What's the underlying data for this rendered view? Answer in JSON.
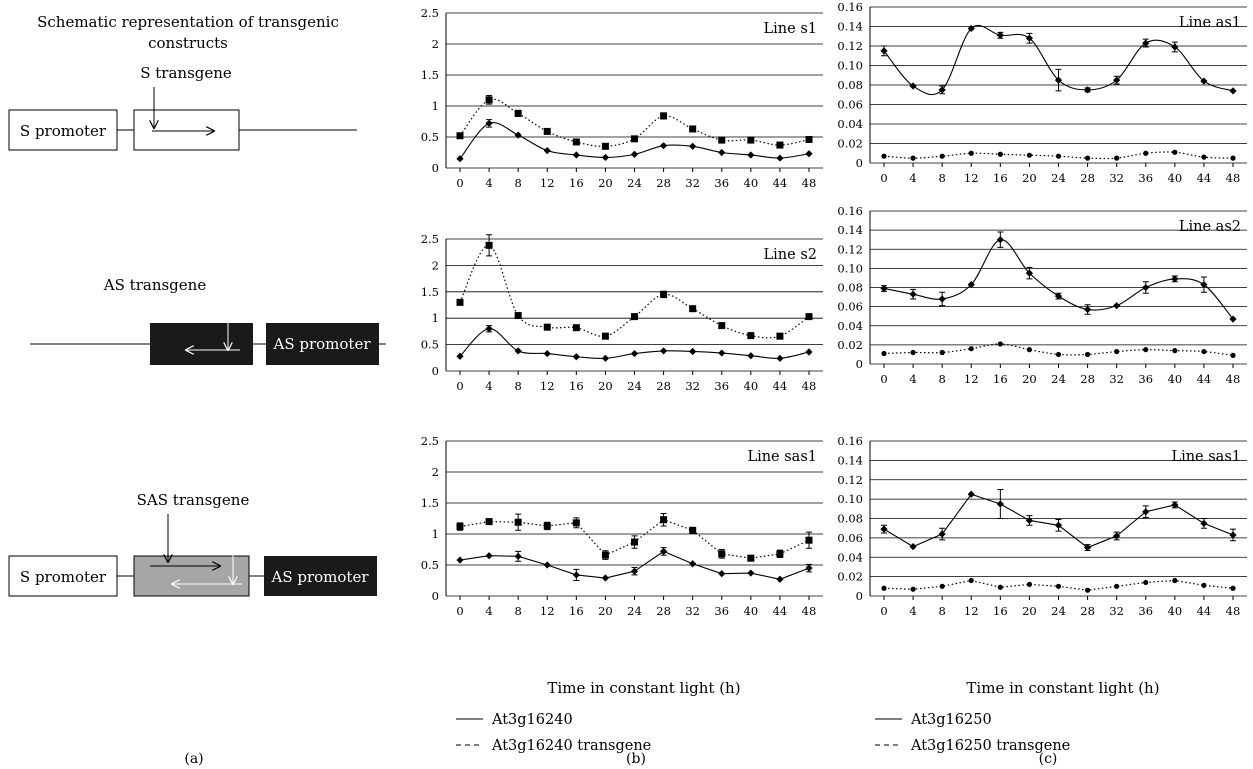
{
  "schematic": {
    "title_line1": "Schematic representation of transgenic",
    "title_line2": "constructs",
    "s_transgene_label": "S transgene",
    "s_promoter_label": "S promoter",
    "as_transgene_label": "AS transgene",
    "as_promoter_label": "AS promoter",
    "sas_transgene_label": "SAS transgene",
    "sas_s_promoter_label": "S promoter",
    "sas_as_promoter_label": "AS promoter",
    "colors": {
      "as_block": "#1a1a1a",
      "sas_block": "#a6a6a6"
    }
  },
  "panel_letters": {
    "a": "(a)",
    "b": "(b)",
    "c": "(c)"
  },
  "xlabels": {
    "b": "Time in constant light (h)",
    "c": "Time in constant light (h)"
  },
  "legends": {
    "b": {
      "solid": "At3g16240",
      "dashed": "At3g16240 transgene"
    },
    "c": {
      "solid": "At3g16250",
      "dashed": "At3g16250 transgene"
    }
  },
  "chart_data": [
    {
      "id": "s1",
      "type": "line",
      "title": "Line s1",
      "x": [
        0,
        4,
        8,
        12,
        16,
        20,
        24,
        28,
        32,
        36,
        40,
        44,
        48
      ],
      "ylim": [
        0,
        2.5
      ],
      "yticks": [
        "0",
        "0.5",
        "1",
        "1.5",
        "2",
        "2.5"
      ],
      "grid": true,
      "smooth": true,
      "series": [
        {
          "style": "solid",
          "marker": "diamond",
          "values": [
            0.15,
            0.72,
            0.53,
            0.28,
            0.21,
            0.17,
            0.22,
            0.36,
            0.35,
            0.25,
            0.21,
            0.16,
            0.23
          ],
          "errors": [
            0,
            0.06,
            0,
            0,
            0,
            0,
            0,
            0,
            0,
            0,
            0,
            0,
            0
          ]
        },
        {
          "style": "dotted",
          "marker": "square",
          "values": [
            0.52,
            1.1,
            0.88,
            0.59,
            0.42,
            0.35,
            0.47,
            0.84,
            0.63,
            0.45,
            0.45,
            0.37,
            0.46
          ],
          "errors": [
            0,
            0.07,
            0.05,
            0,
            0,
            0,
            0,
            0.05,
            0,
            0,
            0,
            0,
            0
          ]
        }
      ]
    },
    {
      "id": "s2",
      "type": "line",
      "title": "Line s2",
      "x": [
        0,
        4,
        8,
        12,
        16,
        20,
        24,
        28,
        32,
        36,
        40,
        44,
        48
      ],
      "ylim": [
        0,
        2.5
      ],
      "yticks": [
        "0",
        "0.5",
        "1",
        "1.5",
        "2",
        "2.5"
      ],
      "grid": true,
      "smooth": true,
      "series": [
        {
          "style": "solid",
          "marker": "diamond",
          "values": [
            0.28,
            0.8,
            0.38,
            0.33,
            0.27,
            0.24,
            0.33,
            0.38,
            0.37,
            0.34,
            0.29,
            0.24,
            0.36
          ],
          "errors": [
            0,
            0.06,
            0,
            0,
            0,
            0,
            0,
            0,
            0,
            0,
            0,
            0,
            0
          ]
        },
        {
          "style": "dotted",
          "marker": "square",
          "values": [
            1.3,
            2.38,
            1.05,
            0.83,
            0.82,
            0.66,
            1.03,
            1.45,
            1.18,
            0.86,
            0.67,
            0.66,
            1.03
          ],
          "errors": [
            0,
            0.2,
            0,
            0,
            0,
            0,
            0,
            0.06,
            0,
            0,
            0,
            0,
            0
          ]
        }
      ]
    },
    {
      "id": "sas1_b",
      "type": "line",
      "title": "Line sas1",
      "x": [
        0,
        4,
        8,
        12,
        16,
        20,
        24,
        28,
        32,
        36,
        40,
        44,
        48
      ],
      "ylim": [
        0,
        2.5
      ],
      "yticks": [
        "0",
        "0.5",
        "1",
        "1.5",
        "2",
        "2.5"
      ],
      "grid": true,
      "smooth": false,
      "series": [
        {
          "style": "solid",
          "marker": "diamond",
          "values": [
            0.58,
            0.65,
            0.64,
            0.5,
            0.34,
            0.29,
            0.4,
            0.72,
            0.52,
            0.36,
            0.37,
            0.27,
            0.45
          ],
          "errors": [
            0,
            0,
            0.08,
            0,
            0.09,
            0,
            0.06,
            0.06,
            0,
            0,
            0,
            0,
            0.06
          ]
        },
        {
          "style": "dotted",
          "marker": "square",
          "values": [
            1.12,
            1.2,
            1.19,
            1.13,
            1.18,
            0.66,
            0.87,
            1.23,
            1.06,
            0.68,
            0.61,
            0.68,
            0.9
          ],
          "errors": [
            0.06,
            0,
            0.13,
            0.06,
            0.08,
            0.07,
            0.1,
            0.1,
            0,
            0.07,
            0,
            0.06,
            0.13
          ]
        }
      ]
    },
    {
      "id": "as1",
      "type": "line",
      "title": "Line as1",
      "x": [
        0,
        4,
        8,
        12,
        16,
        20,
        24,
        28,
        32,
        36,
        40,
        44,
        48
      ],
      "ylim": [
        0,
        0.16
      ],
      "yticks": [
        "0",
        "0.02",
        "0.04",
        "0.06",
        "0.08",
        "0.10",
        "0.12",
        "0.14",
        "0.16"
      ],
      "grid": true,
      "smooth": true,
      "series": [
        {
          "style": "solid",
          "marker": "diamond",
          "values": [
            0.115,
            0.079,
            0.075,
            0.138,
            0.131,
            0.128,
            0.085,
            0.075,
            0.085,
            0.123,
            0.119,
            0.084,
            0.074
          ],
          "errors": [
            0.005,
            0,
            0.004,
            0,
            0.003,
            0.005,
            0.011,
            0.002,
            0.004,
            0.004,
            0.005,
            0,
            0
          ]
        },
        {
          "style": "dotted",
          "marker": "circle",
          "values": [
            0.007,
            0.005,
            0.007,
            0.01,
            0.009,
            0.008,
            0.007,
            0.005,
            0.005,
            0.01,
            0.011,
            0.006,
            0.005
          ],
          "errors": [
            0,
            0,
            0,
            0,
            0,
            0,
            0,
            0,
            0,
            0,
            0,
            0,
            0
          ]
        }
      ]
    },
    {
      "id": "as2",
      "type": "line",
      "title": "Line as2",
      "x": [
        0,
        4,
        8,
        12,
        16,
        20,
        24,
        28,
        32,
        36,
        40,
        44,
        48
      ],
      "ylim": [
        0,
        0.16
      ],
      "yticks": [
        "0",
        "0.02",
        "0.04",
        "0.06",
        "0.08",
        "0.10",
        "0.12",
        "0.14",
        "0.16"
      ],
      "grid": true,
      "smooth": true,
      "series": [
        {
          "style": "solid",
          "marker": "diamond",
          "values": [
            0.079,
            0.073,
            0.068,
            0.083,
            0.13,
            0.095,
            0.071,
            0.057,
            0.061,
            0.08,
            0.089,
            0.083,
            0.047
          ],
          "errors": [
            0.003,
            0.005,
            0.007,
            0,
            0.008,
            0.006,
            0.003,
            0.005,
            0,
            0.006,
            0.003,
            0.008,
            0
          ]
        },
        {
          "style": "dotted",
          "marker": "circle",
          "values": [
            0.011,
            0.012,
            0.012,
            0.016,
            0.021,
            0.015,
            0.01,
            0.01,
            0.013,
            0.015,
            0.014,
            0.013,
            0.009
          ],
          "errors": [
            0,
            0,
            0,
            0,
            0,
            0,
            0,
            0,
            0,
            0,
            0,
            0,
            0
          ]
        }
      ]
    },
    {
      "id": "sas1_c",
      "type": "line",
      "title": "Line sas1",
      "x": [
        0,
        4,
        8,
        12,
        16,
        20,
        24,
        28,
        32,
        36,
        40,
        44,
        48
      ],
      "ylim": [
        0,
        0.16
      ],
      "yticks": [
        "0",
        "0.02",
        "0.04",
        "0.06",
        "0.08",
        "0.10",
        "0.12",
        "0.14",
        "0.16"
      ],
      "grid": true,
      "smooth": false,
      "series": [
        {
          "style": "solid",
          "marker": "diamond",
          "values": [
            0.069,
            0.051,
            0.064,
            0.105,
            0.095,
            0.078,
            0.073,
            0.05,
            0.062,
            0.087,
            0.094,
            0.075,
            0.063
          ],
          "errors": [
            0.004,
            0,
            0.006,
            0,
            0.015,
            0.005,
            0.006,
            0.003,
            0.004,
            0.006,
            0.003,
            0.005,
            0.006
          ]
        },
        {
          "style": "dotted",
          "marker": "circle",
          "values": [
            0.008,
            0.007,
            0.01,
            0.016,
            0.009,
            0.012,
            0.01,
            0.006,
            0.01,
            0.014,
            0.016,
            0.011,
            0.008
          ],
          "errors": [
            0,
            0,
            0,
            0,
            0,
            0,
            0,
            0,
            0,
            0,
            0,
            0,
            0
          ]
        }
      ]
    }
  ]
}
